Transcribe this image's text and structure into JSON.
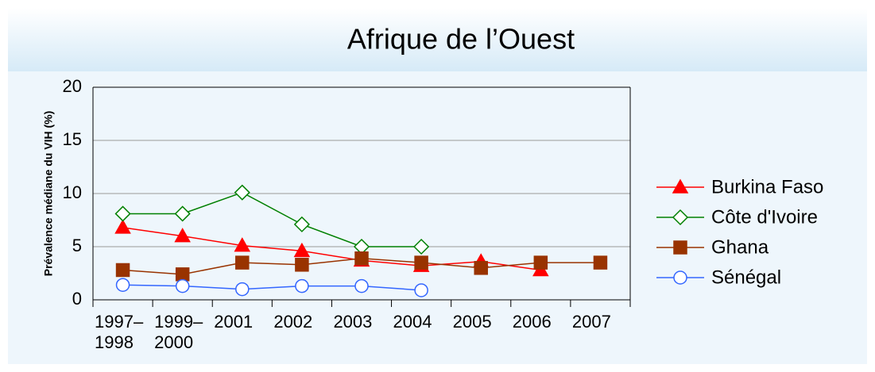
{
  "chart_data": {
    "type": "line",
    "title": "Afrique de l’Ouest",
    "y_label": "Prévalence médiane du VIH (%)",
    "categories": [
      "1997–1998",
      "1999–2000",
      "2001",
      "2002",
      "2003",
      "2004",
      "2005",
      "2006",
      "2007"
    ],
    "series": [
      {
        "name": "Burkina Faso",
        "color": "#ff0000",
        "marker": "triangle",
        "values": [
          6.8,
          6.0,
          5.1,
          4.6,
          3.7,
          3.2,
          3.6,
          2.8,
          null
        ]
      },
      {
        "name": "Côte d'Ivoire",
        "color": "#008000",
        "marker": "diamond",
        "values": [
          8.1,
          8.1,
          10.1,
          7.1,
          5.0,
          5.0,
          null,
          null,
          null
        ]
      },
      {
        "name": "Ghana",
        "color": "#993300",
        "marker": "square",
        "values": [
          2.8,
          2.4,
          3.5,
          3.3,
          3.9,
          3.5,
          3.0,
          3.5,
          3.5
        ]
      },
      {
        "name": "Sénégal",
        "color": "#3366ff",
        "marker": "circle",
        "values": [
          1.4,
          1.3,
          1.0,
          1.3,
          1.3,
          0.9,
          null,
          null,
          null
        ]
      }
    ],
    "ylim": [
      0,
      20
    ],
    "yticks": [
      0,
      5,
      10,
      15,
      20
    ],
    "grid": true,
    "legend": "right"
  }
}
